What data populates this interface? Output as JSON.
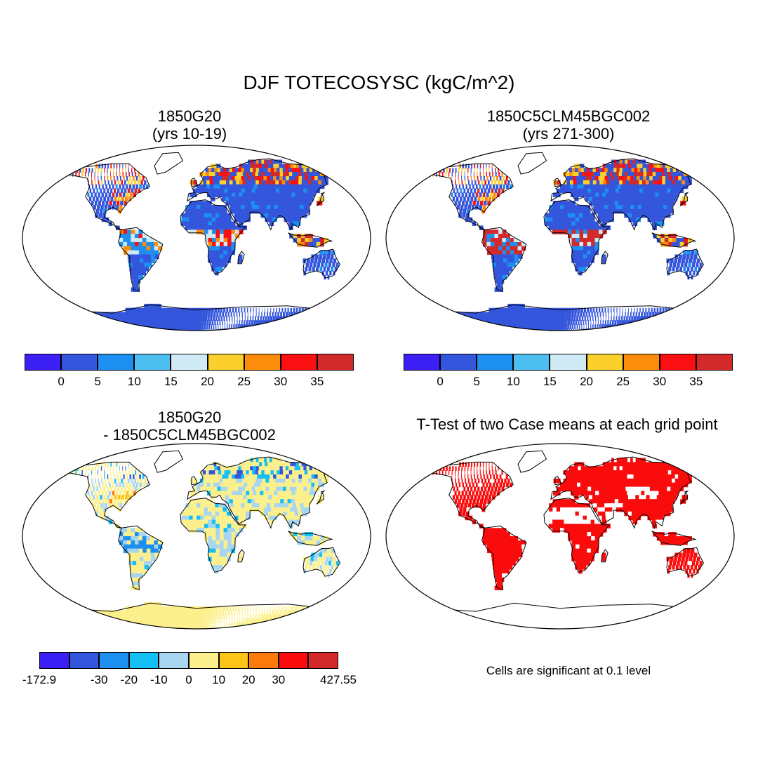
{
  "figure": {
    "title": "DJF TOTECOSYSC (kgC/m^2)"
  },
  "panels": [
    {
      "id": "case1",
      "title_line1": "1850G20",
      "title_line2": "(yrs 10-19)",
      "palette": "abs"
    },
    {
      "id": "case2",
      "title_line1": "1850C5CLM45BGC002",
      "title_line2": "(yrs 271-300)",
      "palette": "abs"
    },
    {
      "id": "diff",
      "title_line1": "1850G20",
      "title_line2": "- 1850C5CLM45BGC002",
      "palette": "diff"
    },
    {
      "id": "ttest",
      "title_line1": "T-Test of two Case means at each grid point",
      "note": "Cells are significant at 0.1 level",
      "palette": "sig"
    }
  ],
  "colorbars": {
    "abs": {
      "colors": [
        "#3b1ff5",
        "#3456dc",
        "#1c8ff0",
        "#4cbff0",
        "#cfeaf5",
        "#fbcf2c",
        "#fb8c0c",
        "#fa0f12",
        "#d22a2a"
      ],
      "labels": [
        "0",
        "5",
        "10",
        "15",
        "20",
        "25",
        "30",
        "35"
      ]
    },
    "diff": {
      "colors": [
        "#3b1ff5",
        "#3456dc",
        "#1c8ff0",
        "#14bff5",
        "#a8d6f0",
        "#fcf08c",
        "#fcc416",
        "#fa7a0c",
        "#fa0c0c",
        "#d22a2a"
      ],
      "labels": [
        "-172.9",
        "-30",
        "-20",
        "-10",
        "0",
        "10",
        "20",
        "30",
        "427.55"
      ]
    }
  }
}
